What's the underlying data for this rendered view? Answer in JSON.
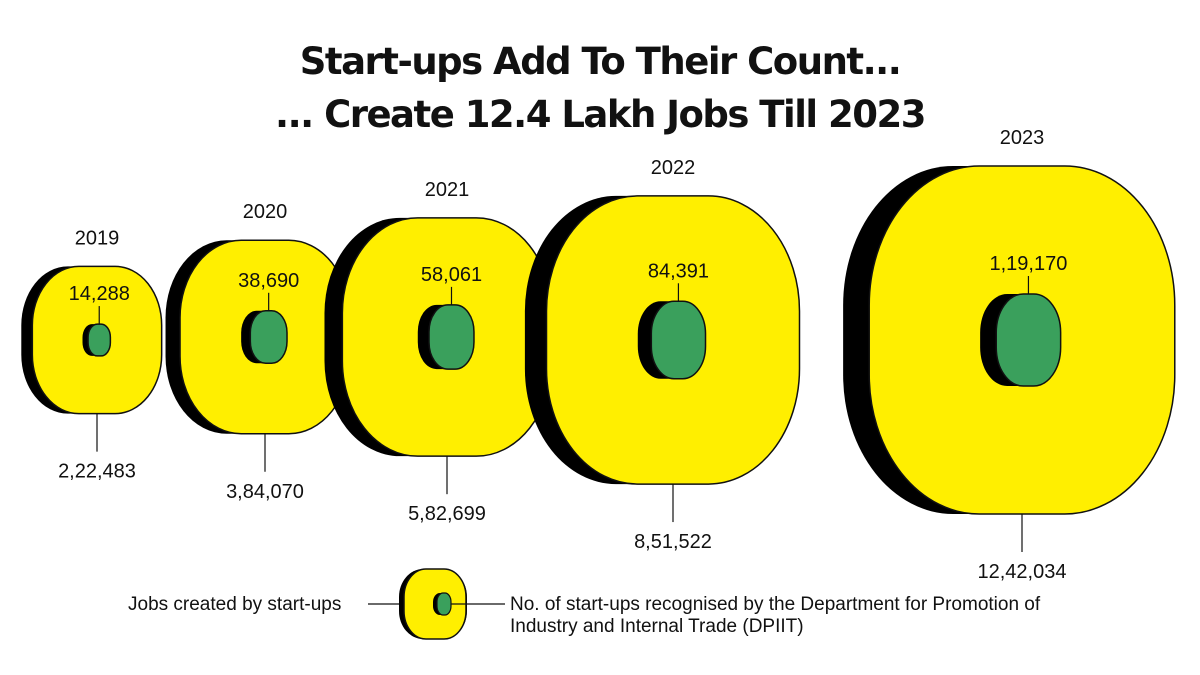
{
  "title": {
    "line1": "Start-ups Add To Their Count...",
    "line2": "... Create 12.4 Lakh Jobs Till 2023"
  },
  "colors": {
    "outer_fill": "#ffef00",
    "inner_fill": "#3aa05c",
    "shadow": "#000000",
    "stroke": "#111111"
  },
  "chart_data": {
    "type": "nested-proportional-shapes",
    "categories": [
      "2019",
      "2020",
      "2021",
      "2022",
      "2023"
    ],
    "series": [
      {
        "name": "Jobs created by start-ups",
        "labels": [
          "2,22,483",
          "3,84,070",
          "5,82,699",
          "8,51,522",
          "12,42,034"
        ],
        "values": [
          222483,
          384070,
          582699,
          851522,
          1242034
        ]
      },
      {
        "name": "No. of start-ups recognised by the Department for Promotion of Industry and Internal Trade (DPIIT)",
        "labels": [
          "14,288",
          "38,690",
          "58,061",
          "84,391",
          "1,19,170"
        ],
        "values": [
          14288,
          38690,
          58061,
          84391,
          119170
        ]
      }
    ]
  },
  "legend": {
    "jobs_label": "Jobs created by start-ups",
    "startups_label_line1": "No. of start-ups recognised by the Department for Promotion of",
    "startups_label_line2": "Industry and Internal Trade (DPIIT)"
  }
}
